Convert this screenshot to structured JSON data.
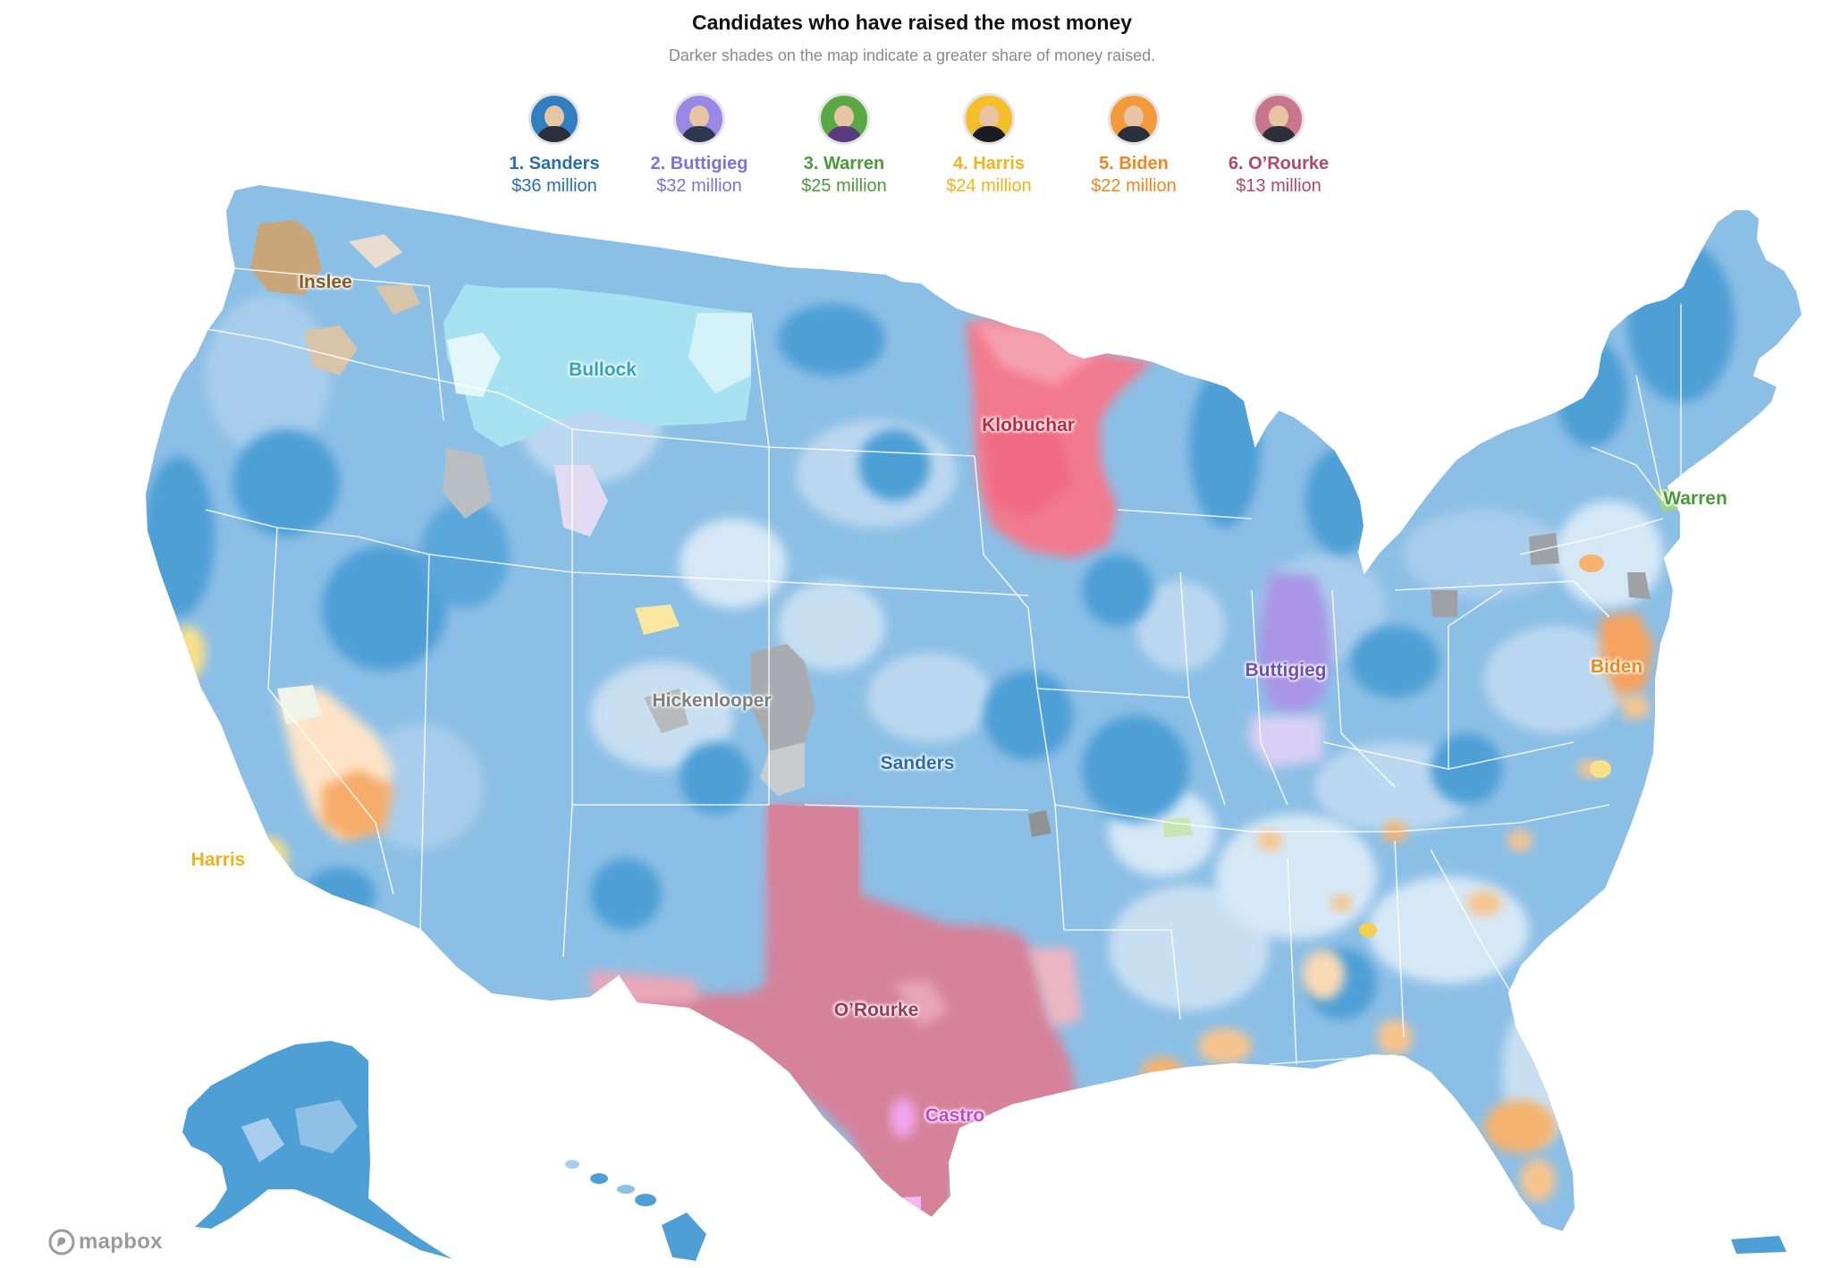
{
  "header": {
    "title": "Candidates who have raised the most money",
    "subtitle": "Darker shades on the map indicate a greater share of money raised."
  },
  "candidates": [
    {
      "name": "1. Sanders",
      "amount": "$36 million",
      "color": "#2a6db0",
      "ring": "#2f7fc1",
      "suit": "#2b2f3c",
      "icon": "sanders-avatar-icon"
    },
    {
      "name": "2. Buttigieg",
      "amount": "$32 million",
      "color": "#8170d8",
      "ring": "#9a88e6",
      "suit": "#2e3750",
      "icon": "buttigieg-avatar-icon"
    },
    {
      "name": "3. Warren",
      "amount": "$25 million",
      "color": "#4c9a3a",
      "ring": "#5aa844",
      "suit": "#5c3a82",
      "icon": "warren-avatar-icon"
    },
    {
      "name": "4. Harris",
      "amount": "$24 million",
      "color": "#f3b31b",
      "ring": "#f5bf2c",
      "suit": "#1b1b22",
      "icon": "harris-avatar-icon"
    },
    {
      "name": "5. Biden",
      "amount": "$22 million",
      "color": "#f0861f",
      "ring": "#f39a3a",
      "suit": "#2a3040",
      "icon": "biden-avatar-icon"
    },
    {
      "name": "6. O’Rourke",
      "amount": "$13 million",
      "color": "#b04a67",
      "ring": "#c9768c",
      "suit": "#2c2f3a",
      "icon": "orourke-avatar-icon"
    }
  ],
  "map": {
    "region_labels": [
      {
        "text": "Inslee",
        "color": "#8a5a1e"
      },
      {
        "text": "Bullock",
        "color": "#2fa6bf"
      },
      {
        "text": "Klobuchar",
        "color": "#c7253f"
      },
      {
        "text": "Warren",
        "color": "#4c9a3a"
      },
      {
        "text": "Buttigieg",
        "color": "#6c52b8"
      },
      {
        "text": "Biden",
        "color": "#e98a1c"
      },
      {
        "text": "Hickenlooper",
        "color": "#7f7f7f"
      },
      {
        "text": "Sanders",
        "color": "#2a6db0"
      },
      {
        "text": "Harris",
        "color": "#f0b21a"
      },
      {
        "text": "O’Rourke",
        "color": "#9b3a55"
      },
      {
        "text": "Castro",
        "color": "#d13fd6"
      }
    ],
    "colors": {
      "sanders": "#4e9fd6",
      "sanders_light": "#a9cdec",
      "sanders_pale": "#d6e8f6",
      "orourke": "#d6829a",
      "klobuchar": "#f27a8e",
      "bullock": "#a6e2ef",
      "buttigieg": "#a996e6",
      "biden": "#f6b36e",
      "harris": "#f8df8a",
      "inslee": "#c9a67a",
      "hickenlooper": "#a8acb0",
      "castro": "#f3a5f0",
      "warren": "#9fd18a"
    }
  },
  "attribution": {
    "text": "mapbox",
    "icon": "mapbox-logo-icon"
  }
}
